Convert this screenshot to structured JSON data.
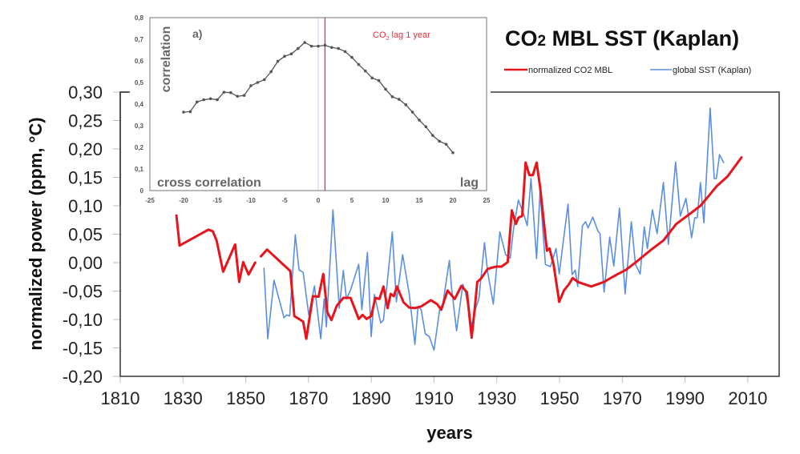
{
  "chart_data": [
    {
      "id": "main",
      "type": "line",
      "title": "CO₂ MBL SST (Kaplan)",
      "title_parts": {
        "main1": "CO",
        "sub": "2",
        "main2": " MBL SST (Kaplan)"
      },
      "xlabel": "years",
      "ylabel": "normalized power (ppm, °C)",
      "xlim": [
        1810,
        2020
      ],
      "ylim": [
        -0.2,
        0.3
      ],
      "xticks": [
        1810,
        1830,
        1850,
        1870,
        1890,
        1910,
        1930,
        1950,
        1970,
        1990,
        2010
      ],
      "xtick_labels": [
        "1810",
        "1830",
        "1850",
        "1870",
        "1890",
        "1910",
        "1930",
        "1950",
        "1970",
        "1990",
        "2010"
      ],
      "yticks": [
        0.3,
        0.25,
        0.2,
        0.15,
        0.1,
        0.05,
        0.0,
        -0.05,
        -0.1,
        -0.15,
        -0.2
      ],
      "ytick_labels": [
        "0,30",
        "0,25",
        "0,20",
        "0,15",
        "0,10",
        "0,05",
        "0,00",
        "-0,05",
        "-0,10",
        "-0,15",
        "-0,20"
      ],
      "grid": false,
      "legend": {
        "placement": "top-right",
        "entries": [
          {
            "label": "normalized CO2 MBL",
            "color": "#e8141c"
          },
          {
            "label": "global SST (Kaplan)",
            "color": "#5b8ee0"
          }
        ]
      },
      "series": [
        {
          "name": "normalized CO2 MBL",
          "color": "#e8141c",
          "segments": [
            [
              [
                1827.9,
                0.083
              ],
              [
                1828.9,
                0.03
              ],
              [
                1838.1,
                0.058
              ],
              [
                1839.5,
                0.055
              ],
              [
                1840.7,
                0.039
              ],
              [
                1842.8,
                -0.016
              ],
              [
                1846.6,
                0.032
              ],
              [
                1847.9,
                -0.034
              ],
              [
                1849.2,
                0.001
              ],
              [
                1850.9,
                -0.021
              ],
              [
                1853.0,
                0.0
              ]
            ],
            [
              [
                1854.8,
                0.011
              ],
              [
                1856.8,
                0.023
              ],
              [
                1864.2,
                -0.015
              ],
              [
                1865.5,
                -0.094
              ],
              [
                1868.3,
                -0.104
              ],
              [
                1869.3,
                -0.134
              ],
              [
                1871.4,
                -0.059
              ],
              [
                1873.2,
                -0.06
              ],
              [
                1874.7,
                -0.02
              ],
              [
                1876.0,
                -0.087
              ],
              [
                1877.3,
                -0.101
              ],
              [
                1879.0,
                -0.076
              ],
              [
                1881.1,
                -0.062
              ],
              [
                1883.4,
                -0.062
              ],
              [
                1886.0,
                -0.099
              ],
              [
                1887.2,
                -0.092
              ],
              [
                1888.5,
                -0.099
              ],
              [
                1890.0,
                -0.094
              ],
              [
                1891.3,
                -0.062
              ],
              [
                1892.6,
                -0.064
              ],
              [
                1893.9,
                -0.042
              ],
              [
                1895.2,
                -0.08
              ],
              [
                1896.2,
                -0.055
              ],
              [
                1897.2,
                -0.059
              ],
              [
                1898.2,
                -0.042
              ],
              [
                1900.3,
                -0.07
              ],
              [
                1902.1,
                -0.079
              ],
              [
                1903.9,
                -0.08
              ],
              [
                1905.9,
                -0.077
              ],
              [
                1909.0,
                -0.066
              ],
              [
                1911.0,
                -0.073
              ],
              [
                1912.3,
                -0.083
              ],
              [
                1914.3,
                -0.049
              ],
              [
                1916.6,
                -0.064
              ],
              [
                1918.7,
                -0.041
              ],
              [
                1920.5,
                -0.052
              ],
              [
                1922.0,
                -0.132
              ],
              [
                1923.0,
                -0.08
              ],
              [
                1923.8,
                -0.034
              ],
              [
                1925.0,
                -0.028
              ],
              [
                1927.1,
                -0.011
              ],
              [
                1929.7,
                -0.007
              ],
              [
                1931.5,
                -0.007
              ],
              [
                1933.5,
                0.001
              ],
              [
                1934.8,
                0.092
              ],
              [
                1936.1,
                0.068
              ],
              [
                1936.9,
                0.079
              ],
              [
                1938.1,
                0.082
              ],
              [
                1939.2,
                0.176
              ],
              [
                1940.4,
                0.154
              ],
              [
                1941.5,
                0.154
              ],
              [
                1942.7,
                0.176
              ],
              [
                1943.8,
                0.134
              ],
              [
                1946.0,
                0.021
              ],
              [
                1946.8,
                0.025
              ],
              [
                1948.1,
                -0.003
              ],
              [
                1949.9,
                -0.069
              ],
              [
                1951.4,
                -0.049
              ],
              [
                1953.0,
                -0.038
              ],
              [
                1954.2,
                -0.027
              ],
              [
                1955.8,
                -0.034
              ],
              [
                1960.1,
                -0.042
              ],
              [
                1964.2,
                -0.034
              ],
              [
                1966.0,
                -0.028
              ],
              [
                1968.6,
                -0.02
              ],
              [
                1971.1,
                -0.013
              ],
              [
                1974.4,
                0.001
              ],
              [
                1978.8,
                0.021
              ],
              [
                1983.1,
                0.039
              ],
              [
                1987.2,
                0.068
              ],
              [
                1991.6,
                0.086
              ],
              [
                1994.9,
                0.1
              ],
              [
                1997.5,
                0.117
              ],
              [
                2000.0,
                0.134
              ],
              [
                2003.6,
                0.152
              ],
              [
                2008.0,
                0.185
              ]
            ]
          ]
        },
        {
          "name": "global SST (Kaplan)",
          "color": "#5b8ee0",
          "segments": [
            [
              [
                1855.8,
                -0.01
              ],
              [
                1857.0,
                -0.134
              ],
              [
                1859.0,
                -0.031
              ],
              [
                1862.2,
                -0.097
              ],
              [
                1863.0,
                -0.092
              ],
              [
                1864.0,
                -0.094
              ],
              [
                1865.8,
                0.049
              ],
              [
                1867.0,
                -0.013
              ],
              [
                1868.3,
                -0.017
              ],
              [
                1870.1,
                -0.092
              ],
              [
                1871.9,
                -0.041
              ],
              [
                1873.9,
                -0.134
              ],
              [
                1875.0,
                -0.064
              ],
              [
                1875.7,
                -0.113
              ],
              [
                1877.8,
                0.093
              ],
              [
                1879.8,
                -0.08
              ],
              [
                1881.1,
                -0.014
              ],
              [
                1882.1,
                -0.064
              ],
              [
                1883.4,
                -0.048
              ],
              [
                1886.0,
                -0.003
              ],
              [
                1887.0,
                -0.083
              ],
              [
                1888.8,
                0.018
              ],
              [
                1890.0,
                -0.13
              ],
              [
                1891.0,
                -0.056
              ],
              [
                1893.0,
                -0.106
              ],
              [
                1893.9,
                -0.101
              ],
              [
                1896.7,
                0.054
              ],
              [
                1898.0,
                -0.069
              ],
              [
                1900.0,
                0.014
              ],
              [
                1902.1,
                -0.055
              ],
              [
                1903.9,
                -0.144
              ],
              [
                1904.9,
                -0.077
              ],
              [
                1905.9,
                -0.083
              ],
              [
                1907.2,
                -0.125
              ],
              [
                1908.5,
                -0.13
              ],
              [
                1910.0,
                -0.154
              ],
              [
                1911.8,
                -0.083
              ],
              [
                1912.8,
                -0.073
              ],
              [
                1914.9,
                0.004
              ],
              [
                1915.6,
                -0.045
              ],
              [
                1917.2,
                -0.12
              ],
              [
                1919.2,
                -0.038
              ],
              [
                1920.0,
                -0.052
              ],
              [
                1922.0,
                -0.111
              ],
              [
                1923.3,
                -0.08
              ],
              [
                1924.3,
                -0.064
              ],
              [
                1926.1,
                0.035
              ],
              [
                1927.1,
                -0.017
              ],
              [
                1928.9,
                -0.073
              ],
              [
                1931.0,
                0.054
              ],
              [
                1932.8,
                0.014
              ],
              [
                1934.3,
                0.008
              ],
              [
                1935.3,
                0.058
              ],
              [
                1936.9,
                0.11
              ],
              [
                1938.6,
                0.085
              ],
              [
                1939.7,
                0.065
              ],
              [
                1940.9,
                0.148
              ],
              [
                1942.7,
                0.007
              ],
              [
                1943.8,
                0.125
              ],
              [
                1945.5,
                -0.003
              ],
              [
                1947.1,
                -0.007
              ],
              [
                1948.9,
                0.025
              ],
              [
                1949.9,
                -0.02
              ],
              [
                1952.7,
                0.103
              ],
              [
                1954.0,
                -0.021
              ],
              [
                1955.0,
                -0.013
              ],
              [
                1955.8,
                -0.042
              ],
              [
                1957.3,
                0.065
              ],
              [
                1958.3,
                0.072
              ],
              [
                1959.1,
                0.061
              ],
              [
                1960.6,
                0.08
              ],
              [
                1962.2,
                0.056
              ],
              [
                1962.9,
                0.051
              ],
              [
                1964.2,
                -0.052
              ],
              [
                1966.0,
                0.045
              ],
              [
                1967.3,
                -0.006
              ],
              [
                1969.1,
                0.096
              ],
              [
                1970.9,
                -0.055
              ],
              [
                1972.9,
                0.072
              ],
              [
                1974.2,
                -0.003
              ],
              [
                1975.7,
                -0.02
              ],
              [
                1977.0,
                0.063
              ],
              [
                1978.0,
                0.025
              ],
              [
                1979.6,
                0.093
              ],
              [
                1981.1,
                0.051
              ],
              [
                1983.1,
                0.141
              ],
              [
                1984.7,
                0.032
              ],
              [
                1987.0,
                0.177
              ],
              [
                1988.5,
                0.082
              ],
              [
                1990.3,
                0.113
              ],
              [
                1992.1,
                0.044
              ],
              [
                1993.1,
                0.079
              ],
              [
                1993.9,
                0.079
              ],
              [
                1994.9,
                0.141
              ],
              [
                1996.0,
                0.07
              ],
              [
                1998.0,
                0.272
              ],
              [
                1999.3,
                0.148
              ],
              [
                2000.0,
                0.148
              ],
              [
                2001.0,
                0.19
              ],
              [
                2002.3,
                0.176
              ]
            ]
          ]
        }
      ]
    },
    {
      "id": "inset",
      "type": "line",
      "panel_label": "a)",
      "title": "cross correlation",
      "xlabel": "lag",
      "ylabel": "correlation",
      "xlim": [
        -25,
        25
      ],
      "ylim": [
        0,
        0.8
      ],
      "xticks": [
        -25,
        -20,
        -15,
        -10,
        -5,
        0,
        5,
        10,
        15,
        20,
        25
      ],
      "xtick_labels": [
        "-25",
        "-20",
        "-15",
        "-10",
        "-5",
        "0",
        "5",
        "10",
        "15",
        "20",
        "25"
      ],
      "yticks": [
        0,
        0.1,
        0.2,
        0.3,
        0.4,
        0.5,
        0.6,
        0.7,
        0.8
      ],
      "ytick_labels": [
        "0",
        "0,1",
        "0,2",
        "0,3",
        "0,4",
        "0,5",
        "0,6",
        "0,7",
        "0,8"
      ],
      "grid": false,
      "annotation": {
        "text_main": "CO",
        "text_sub": "2",
        "text_rest": " lag 1 year",
        "x": 1,
        "color": "#e0303a"
      },
      "reference_line_x": 0,
      "series": [
        {
          "name": "correlation",
          "color": "#555555",
          "x": [
            -20,
            -19,
            -18,
            -17,
            -16,
            -15,
            -14,
            -13,
            -12,
            -11,
            -10,
            -9,
            -8,
            -7,
            -6,
            -5,
            -4,
            -3,
            -2,
            -1,
            0,
            1,
            2,
            3,
            4,
            5,
            6,
            7,
            8,
            9,
            10,
            11,
            12,
            13,
            14,
            15,
            16,
            17,
            18,
            19,
            20
          ],
          "y": [
            0.363,
            0.365,
            0.41,
            0.42,
            0.425,
            0.42,
            0.455,
            0.453,
            0.436,
            0.44,
            0.485,
            0.5,
            0.513,
            0.55,
            0.598,
            0.621,
            0.632,
            0.657,
            0.685,
            0.668,
            0.668,
            0.672,
            0.662,
            0.657,
            0.643,
            0.616,
            0.583,
            0.553,
            0.521,
            0.509,
            0.469,
            0.434,
            0.422,
            0.397,
            0.363,
            0.326,
            0.295,
            0.255,
            0.228,
            0.214,
            0.175
          ]
        }
      ]
    }
  ]
}
